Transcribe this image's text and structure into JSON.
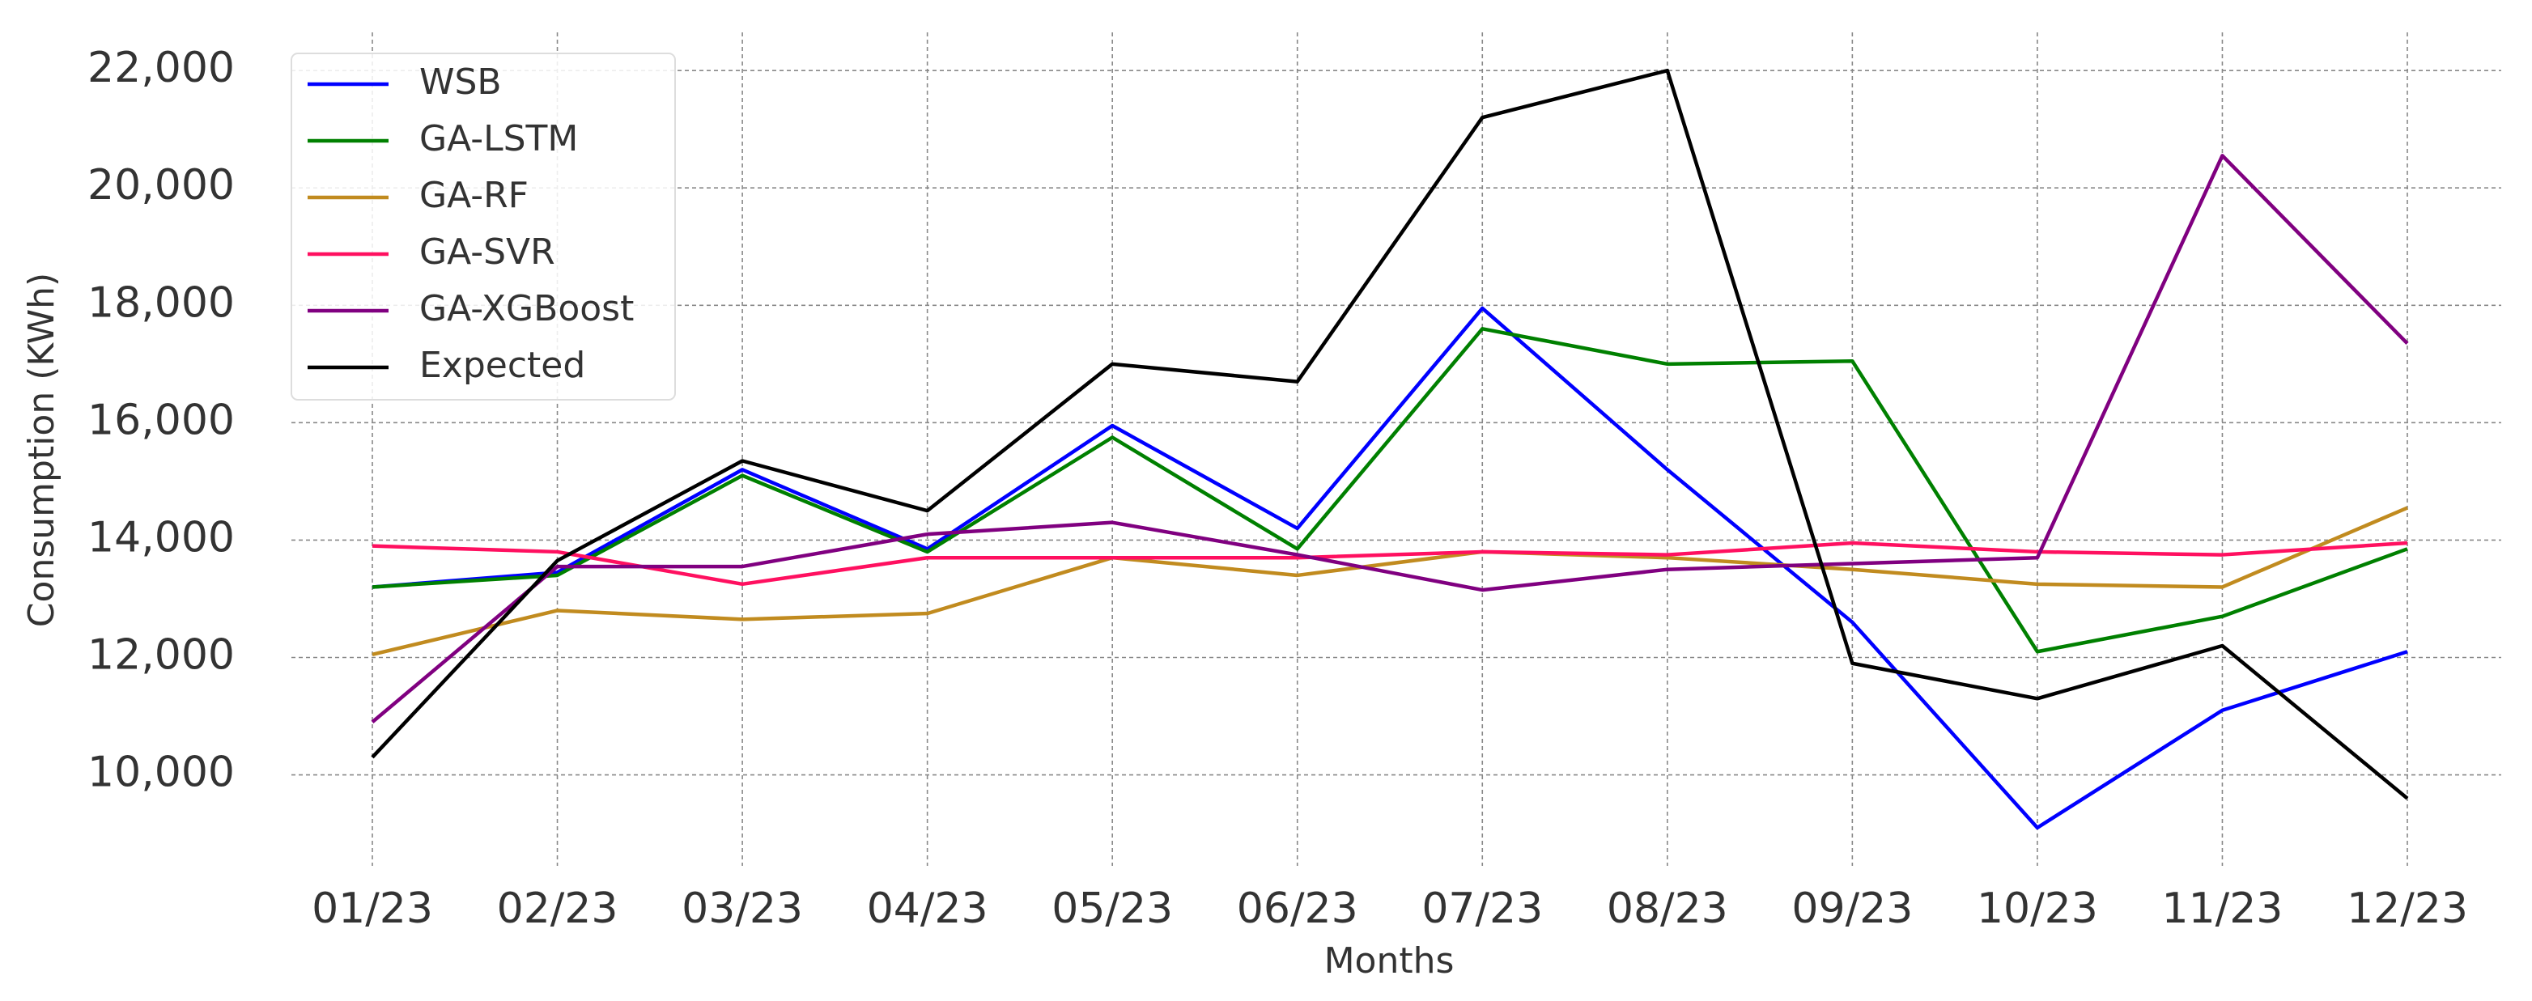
{
  "chart_data": {
    "type": "line",
    "x_label": "Months",
    "y_label": "Consumption (KWh)",
    "categories": [
      "01/23",
      "02/23",
      "03/23",
      "04/23",
      "05/23",
      "06/23",
      "07/23",
      "08/23",
      "09/23",
      "10/23",
      "11/23",
      "12/23"
    ],
    "series": [
      {
        "name": "WSB",
        "color": "#0000ff",
        "values": [
          13200,
          13450,
          15200,
          13850,
          15950,
          14200,
          17950,
          15200,
          12600,
          9100,
          11100,
          12100
        ]
      },
      {
        "name": "GA-LSTM",
        "color": "#008000",
        "values": [
          13200,
          13400,
          15100,
          13800,
          15750,
          13850,
          17600,
          17000,
          17050,
          12100,
          12700,
          13850
        ]
      },
      {
        "name": "GA-RF",
        "color": "#c18b1f",
        "values": [
          12050,
          12800,
          12650,
          12750,
          13700,
          13400,
          13800,
          13700,
          13500,
          13250,
          13200,
          14550
        ]
      },
      {
        "name": "GA-SVR",
        "color": "#ff1060",
        "values": [
          13900,
          13800,
          13250,
          13700,
          13700,
          13700,
          13800,
          13750,
          13950,
          13800,
          13750,
          13950
        ]
      },
      {
        "name": "GA-XGBoost",
        "color": "#800080",
        "values": [
          10900,
          13550,
          13550,
          14100,
          14300,
          13750,
          13150,
          13500,
          13600,
          13700,
          20550,
          17350
        ]
      },
      {
        "name": "Expected",
        "color": "#000000",
        "values": [
          10300,
          13650,
          15350,
          14500,
          17000,
          16700,
          21200,
          22000,
          11900,
          11300,
          12200,
          9600
        ]
      }
    ],
    "ylim": [
      8450,
      22650
    ],
    "yticks": [
      {
        "value": 10000,
        "label": "10,000"
      },
      {
        "value": 12000,
        "label": "12,000"
      },
      {
        "value": 14000,
        "label": "14,000"
      },
      {
        "value": 16000,
        "label": "16,000"
      },
      {
        "value": 18000,
        "label": "18,000"
      },
      {
        "value": 20000,
        "label": "20,000"
      },
      {
        "value": 22000,
        "label": "22,000"
      }
    ],
    "grid": true,
    "legend": "upper left"
  }
}
